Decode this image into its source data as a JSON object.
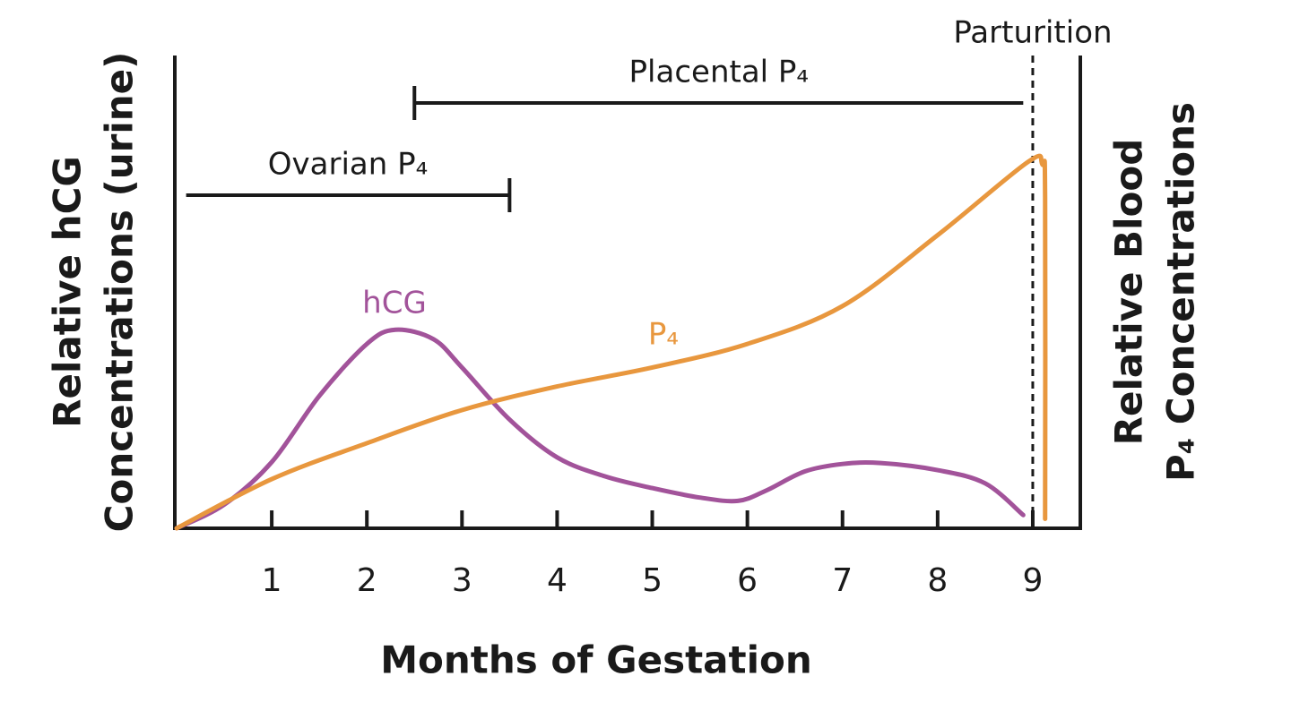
{
  "chart_data": {
    "type": "line",
    "xlabel": "Months of Gestation",
    "ylabel": [
      "Relative hCG",
      "Concentrations (urine)"
    ],
    "y2label": [
      "Relative Blood",
      "P₄ Concentrations"
    ],
    "xlim": [
      0,
      9.5
    ],
    "xticks": [
      1,
      2,
      3,
      4,
      5,
      6,
      7,
      8,
      9
    ],
    "ylim": [
      0,
      100
    ],
    "y2lim": [
      0,
      100
    ],
    "grid": false,
    "series": [
      {
        "name": "hCG",
        "color": "#a2539a",
        "axis": "y",
        "x": [
          0,
          0.5,
          1,
          1.5,
          2,
          2.3,
          2.7,
          3,
          3.5,
          4,
          4.5,
          5,
          5.5,
          5.9,
          6.2,
          6.6,
          7,
          7.4,
          8,
          8.5,
          8.9
        ],
        "values": [
          0,
          5,
          14,
          28,
          39,
          42,
          40,
          34,
          23,
          15,
          11,
          8.5,
          6.5,
          5.8,
          8,
          12,
          13.6,
          13.8,
          12.3,
          9.5,
          2.8
        ]
      },
      {
        "name": "P₄",
        "color": "#e8973e",
        "axis": "y2",
        "x": [
          0,
          1,
          2,
          3,
          4,
          5,
          6,
          7,
          8,
          8.95,
          9.1,
          9.13,
          9.13
        ],
        "values": [
          0,
          10.4,
          18,
          25,
          30,
          34,
          39,
          47,
          62,
          77.5,
          77,
          70,
          2
        ]
      }
    ],
    "ranges": [
      {
        "label": "Ovarian P₄",
        "start": 0.1,
        "end": 3.5
      },
      {
        "label": "Placental P₄",
        "start": 2.5,
        "end": 8.9
      }
    ],
    "vlines": [
      {
        "label": "Parturition",
        "x": 9
      }
    ]
  }
}
